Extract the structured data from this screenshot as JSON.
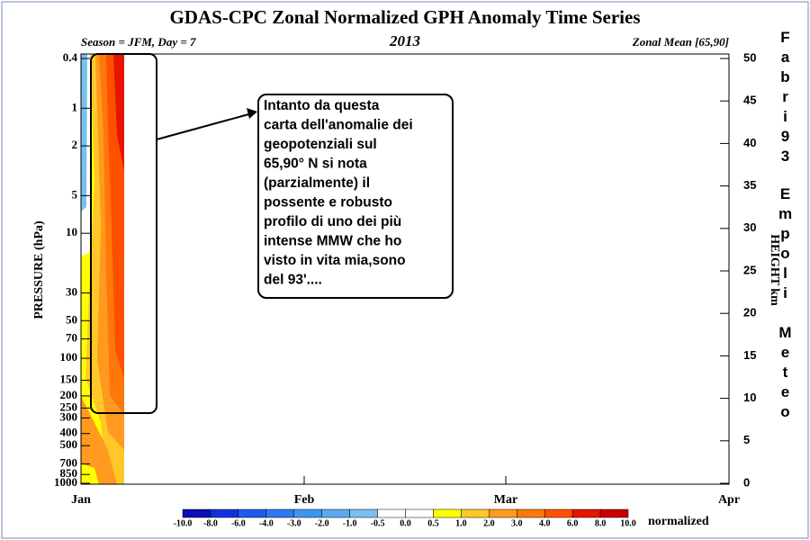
{
  "chart_data": {
    "type": "contour",
    "title": "GDAS-CPC Zonal Normalized GPH Anomaly Time Series",
    "subtitle_left": "Season = JFM, Day =  7",
    "subtitle_center": "2013",
    "subtitle_right": "Zonal Mean [65,90]",
    "y_label": "PRESSURE (hPa)",
    "y2_label": "HEIGHT km",
    "log_scale": true,
    "categories": [
      "Jan",
      "Feb",
      "Mar",
      "Apr"
    ],
    "ylim": [
      1000,
      0.4
    ],
    "yticks": [
      0.4,
      1,
      2,
      5,
      10,
      30,
      50,
      70,
      100,
      150,
      200,
      250,
      300,
      400,
      500,
      700,
      850,
      1000
    ],
    "y2lim": [
      0,
      50
    ],
    "y2ticks": [
      0,
      5,
      10,
      15,
      20,
      25,
      30,
      35,
      40,
      45,
      50
    ],
    "colorbar": {
      "label": "normalized",
      "levels": [
        {
          "value": -10,
          "label": "-10.0"
        },
        {
          "value": -8,
          "label": "-8.0"
        },
        {
          "value": -6,
          "label": "-6.0"
        },
        {
          "value": -4,
          "label": "-4.0"
        },
        {
          "value": -3,
          "label": "-3.0"
        },
        {
          "value": -2,
          "label": "-2.0"
        },
        {
          "value": -1,
          "label": "-1.0"
        },
        {
          "value": -0.5,
          "label": "-0.5"
        },
        {
          "value": 0,
          "label": "0.0"
        },
        {
          "value": 0.5,
          "label": "0.5"
        },
        {
          "value": 1,
          "label": "1.0"
        },
        {
          "value": 2,
          "label": "2.0"
        },
        {
          "value": 3,
          "label": "3.0"
        },
        {
          "value": 4,
          "label": "4.0"
        },
        {
          "value": 6,
          "label": "6.0"
        },
        {
          "value": 8,
          "label": "8.0"
        },
        {
          "value": 10,
          "label": "10.0"
        }
      ],
      "colors": [
        "#0a10b4",
        "#1030dc",
        "#1e5af0",
        "#2e78f0",
        "#3c96f0",
        "#5aaaf0",
        "#78c0f0",
        "#ffffff",
        "#ffffff",
        "#ffff00",
        "#ffc828",
        "#ff9a1e",
        "#ff780a",
        "#ff5000",
        "#e61400",
        "#c80000"
      ]
    },
    "annotation": [
      "Intanto da questa",
      "carta dell'anomalie dei",
      "geopotenziali sul",
      "65,90° N si nota",
      "(parzialmente) il",
      "possente e robusto",
      "profilo di uno dei più",
      "intense MMW che ho",
      "visto in vita mia,sono",
      "del 93'...."
    ],
    "watermark": [
      "Fabri93",
      "Empoli",
      "Meteo"
    ]
  }
}
